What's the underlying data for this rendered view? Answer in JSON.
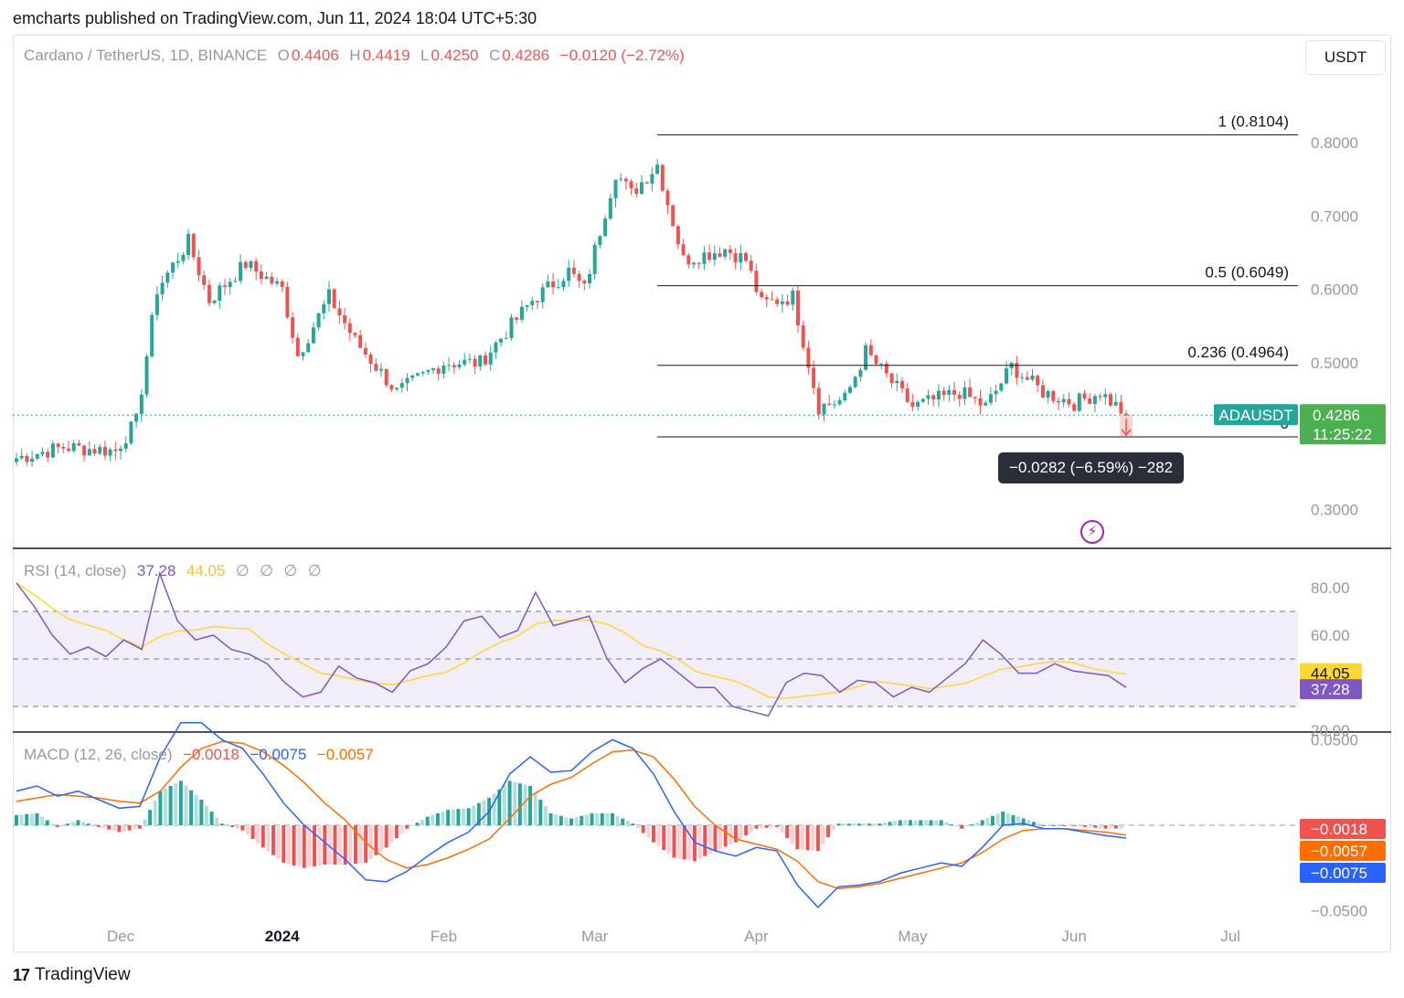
{
  "header": {
    "publisher_line": "emcharts published on TradingView.com, Jun 11, 2024 18:04 UTC+5:30"
  },
  "main_legend": {
    "symbol": "Cardano / TetherUS, 1D, BINANCE",
    "o_label": "O",
    "o_value": "0.4406",
    "h_label": "H",
    "h_value": "0.4419",
    "l_label": "L",
    "l_value": "0.4250",
    "c_label": "C",
    "c_value": "0.4286",
    "change": "−0.0120 (−2.72%)"
  },
  "currency_button": "USDT",
  "measure_tooltip": "−0.0282 (−6.59%) −282",
  "last_price": {
    "symbol": "ADAUSDT",
    "price": "0.4286",
    "countdown": "11:25:22"
  },
  "rsi_legend": {
    "name": "RSI (14, close)",
    "value": "37.28",
    "ma_value": "44.05",
    "extras": [
      "∅",
      "∅",
      "∅",
      "∅"
    ]
  },
  "macd_legend": {
    "name": "MACD (12, 26, close)",
    "hist": "−0.0018",
    "macd": "−0.0075",
    "signal": "−0.0057"
  },
  "footer": {
    "brand": "TradingView"
  },
  "colors": {
    "up": "#26a69a",
    "down": "#ef5350",
    "rsi": "#7e57c2",
    "rsi_ma": "#fdd835",
    "macd": "#2962ff",
    "signal": "#ff6d00",
    "fib": "#131722"
  },
  "chart_data": [
    {
      "type": "candlestick",
      "title": "Cardano / TetherUS, 1D, BINANCE",
      "ylim": [
        0.27,
        0.83
      ],
      "y_ticks": [
        "0.8000",
        "0.7000",
        "0.6000",
        "0.5000",
        "0.3000"
      ],
      "x_ticks": [
        "Dec",
        "2024",
        "Feb",
        "Mar",
        "Apr",
        "May",
        "Jun",
        "Jul"
      ],
      "fib_levels": [
        {
          "label": "1 (0.8104)",
          "value": 0.8104
        },
        {
          "label": "0.5 (0.6049)",
          "value": 0.6049
        },
        {
          "label": "0.236 (0.4964)",
          "value": 0.4964
        },
        {
          "label": "0",
          "value": 0.399
        }
      ],
      "last_close": 0.4286,
      "keypoints": [
        {
          "date": "2023-11-11",
          "close": 0.37
        },
        {
          "date": "2023-11-20",
          "close": 0.385
        },
        {
          "date": "2023-11-30",
          "close": 0.38
        },
        {
          "date": "2023-12-04",
          "close": 0.42
        },
        {
          "date": "2023-12-08",
          "close": 0.6
        },
        {
          "date": "2023-12-14",
          "close": 0.665
        },
        {
          "date": "2023-12-18",
          "close": 0.585
        },
        {
          "date": "2023-12-25",
          "close": 0.635
        },
        {
          "date": "2024-01-01",
          "close": 0.6
        },
        {
          "date": "2024-01-04",
          "close": 0.51
        },
        {
          "date": "2024-01-10",
          "close": 0.59
        },
        {
          "date": "2024-01-15",
          "close": 0.53
        },
        {
          "date": "2024-01-23",
          "close": 0.46
        },
        {
          "date": "2024-02-01",
          "close": 0.5
        },
        {
          "date": "2024-02-08",
          "close": 0.5
        },
        {
          "date": "2024-02-18",
          "close": 0.585
        },
        {
          "date": "2024-02-25",
          "close": 0.625
        },
        {
          "date": "2024-02-28",
          "close": 0.6
        },
        {
          "date": "2024-03-05",
          "close": 0.76
        },
        {
          "date": "2024-03-08",
          "close": 0.73
        },
        {
          "date": "2024-03-13",
          "close": 0.77
        },
        {
          "date": "2024-03-18",
          "close": 0.64
        },
        {
          "date": "2024-03-26",
          "close": 0.655
        },
        {
          "date": "2024-03-30",
          "close": 0.64
        },
        {
          "date": "2024-04-02",
          "close": 0.58
        },
        {
          "date": "2024-04-08",
          "close": 0.59
        },
        {
          "date": "2024-04-13",
          "close": 0.44
        },
        {
          "date": "2024-04-18",
          "close": 0.45
        },
        {
          "date": "2024-04-22",
          "close": 0.515
        },
        {
          "date": "2024-05-01",
          "close": 0.44
        },
        {
          "date": "2024-05-10",
          "close": 0.46
        },
        {
          "date": "2024-05-15",
          "close": 0.44
        },
        {
          "date": "2024-05-20",
          "close": 0.495
        },
        {
          "date": "2024-05-26",
          "close": 0.46
        },
        {
          "date": "2024-06-01",
          "close": 0.445
        },
        {
          "date": "2024-06-06",
          "close": 0.46
        },
        {
          "date": "2024-06-11",
          "close": 0.4286
        }
      ]
    },
    {
      "type": "line",
      "title": "RSI (14, close)",
      "ylim": [
        14,
        92
      ],
      "y_ticks": [
        "80.00",
        "60.00",
        "20.00"
      ],
      "bands": [
        70,
        50,
        30
      ],
      "last_value": 37.28,
      "last_ma": 44.05,
      "series": [
        {
          "name": "RSI",
          "values": [
            82,
            72,
            60,
            52,
            55,
            51,
            58,
            54,
            86,
            66,
            58,
            60,
            54,
            52,
            48,
            40,
            34,
            36,
            47,
            42,
            40,
            36,
            45,
            48,
            55,
            66,
            68,
            59,
            62,
            78,
            64,
            66,
            68,
            50,
            40,
            46,
            50,
            44,
            38,
            38,
            30,
            28,
            26,
            40,
            44,
            43,
            36,
            41,
            40,
            34,
            38,
            36,
            42,
            48,
            58,
            52,
            44,
            44,
            48,
            45,
            44,
            43,
            38
          ]
        }
      ]
    },
    {
      "type": "line",
      "title": "MACD (12, 26, close)",
      "ylim": [
        -0.055,
        0.057
      ],
      "y_ticks": [
        "0.0500",
        "−0.0500"
      ],
      "last_hist": -0.0018,
      "last_macd": -0.0075,
      "last_signal": -0.0057,
      "series": [
        {
          "name": "MACD",
          "values": [
            0.02,
            0.023,
            0.017,
            0.02,
            0.015,
            0.01,
            0.011,
            0.04,
            0.06,
            0.06,
            0.05,
            0.045,
            0.03,
            0.013,
            0,
            -0.01,
            -0.02,
            -0.032,
            -0.033,
            -0.027,
            -0.018,
            -0.01,
            -0.004,
            0.008,
            0.03,
            0.04,
            0.031,
            0.032,
            0.043,
            0.05,
            0.045,
            0.03,
            0.008,
            -0.01,
            -0.015,
            -0.018,
            -0.013,
            -0.015,
            -0.035,
            -0.048,
            -0.036,
            -0.035,
            -0.033,
            -0.028,
            -0.025,
            -0.022,
            -0.024,
            -0.013,
            0,
            0.001,
            -0.002,
            -0.002,
            -0.004,
            -0.006,
            -0.0075
          ]
        },
        {
          "name": "Signal",
          "values": [
            0.014,
            0.016,
            0.018,
            0.017,
            0.016,
            0.014,
            0.013,
            0.02,
            0.034,
            0.045,
            0.049,
            0.048,
            0.043,
            0.035,
            0.025,
            0.013,
            0.003,
            -0.01,
            -0.02,
            -0.025,
            -0.023,
            -0.019,
            -0.014,
            -0.008,
            0.004,
            0.017,
            0.024,
            0.028,
            0.036,
            0.043,
            0.044,
            0.04,
            0.027,
            0.011,
            0,
            -0.008,
            -0.011,
            -0.014,
            -0.021,
            -0.033,
            -0.037,
            -0.036,
            -0.034,
            -0.031,
            -0.028,
            -0.025,
            -0.022,
            -0.016,
            -0.008,
            -0.003,
            -0.002,
            -0.002,
            -0.003,
            -0.004,
            -0.0057
          ]
        }
      ]
    }
  ]
}
